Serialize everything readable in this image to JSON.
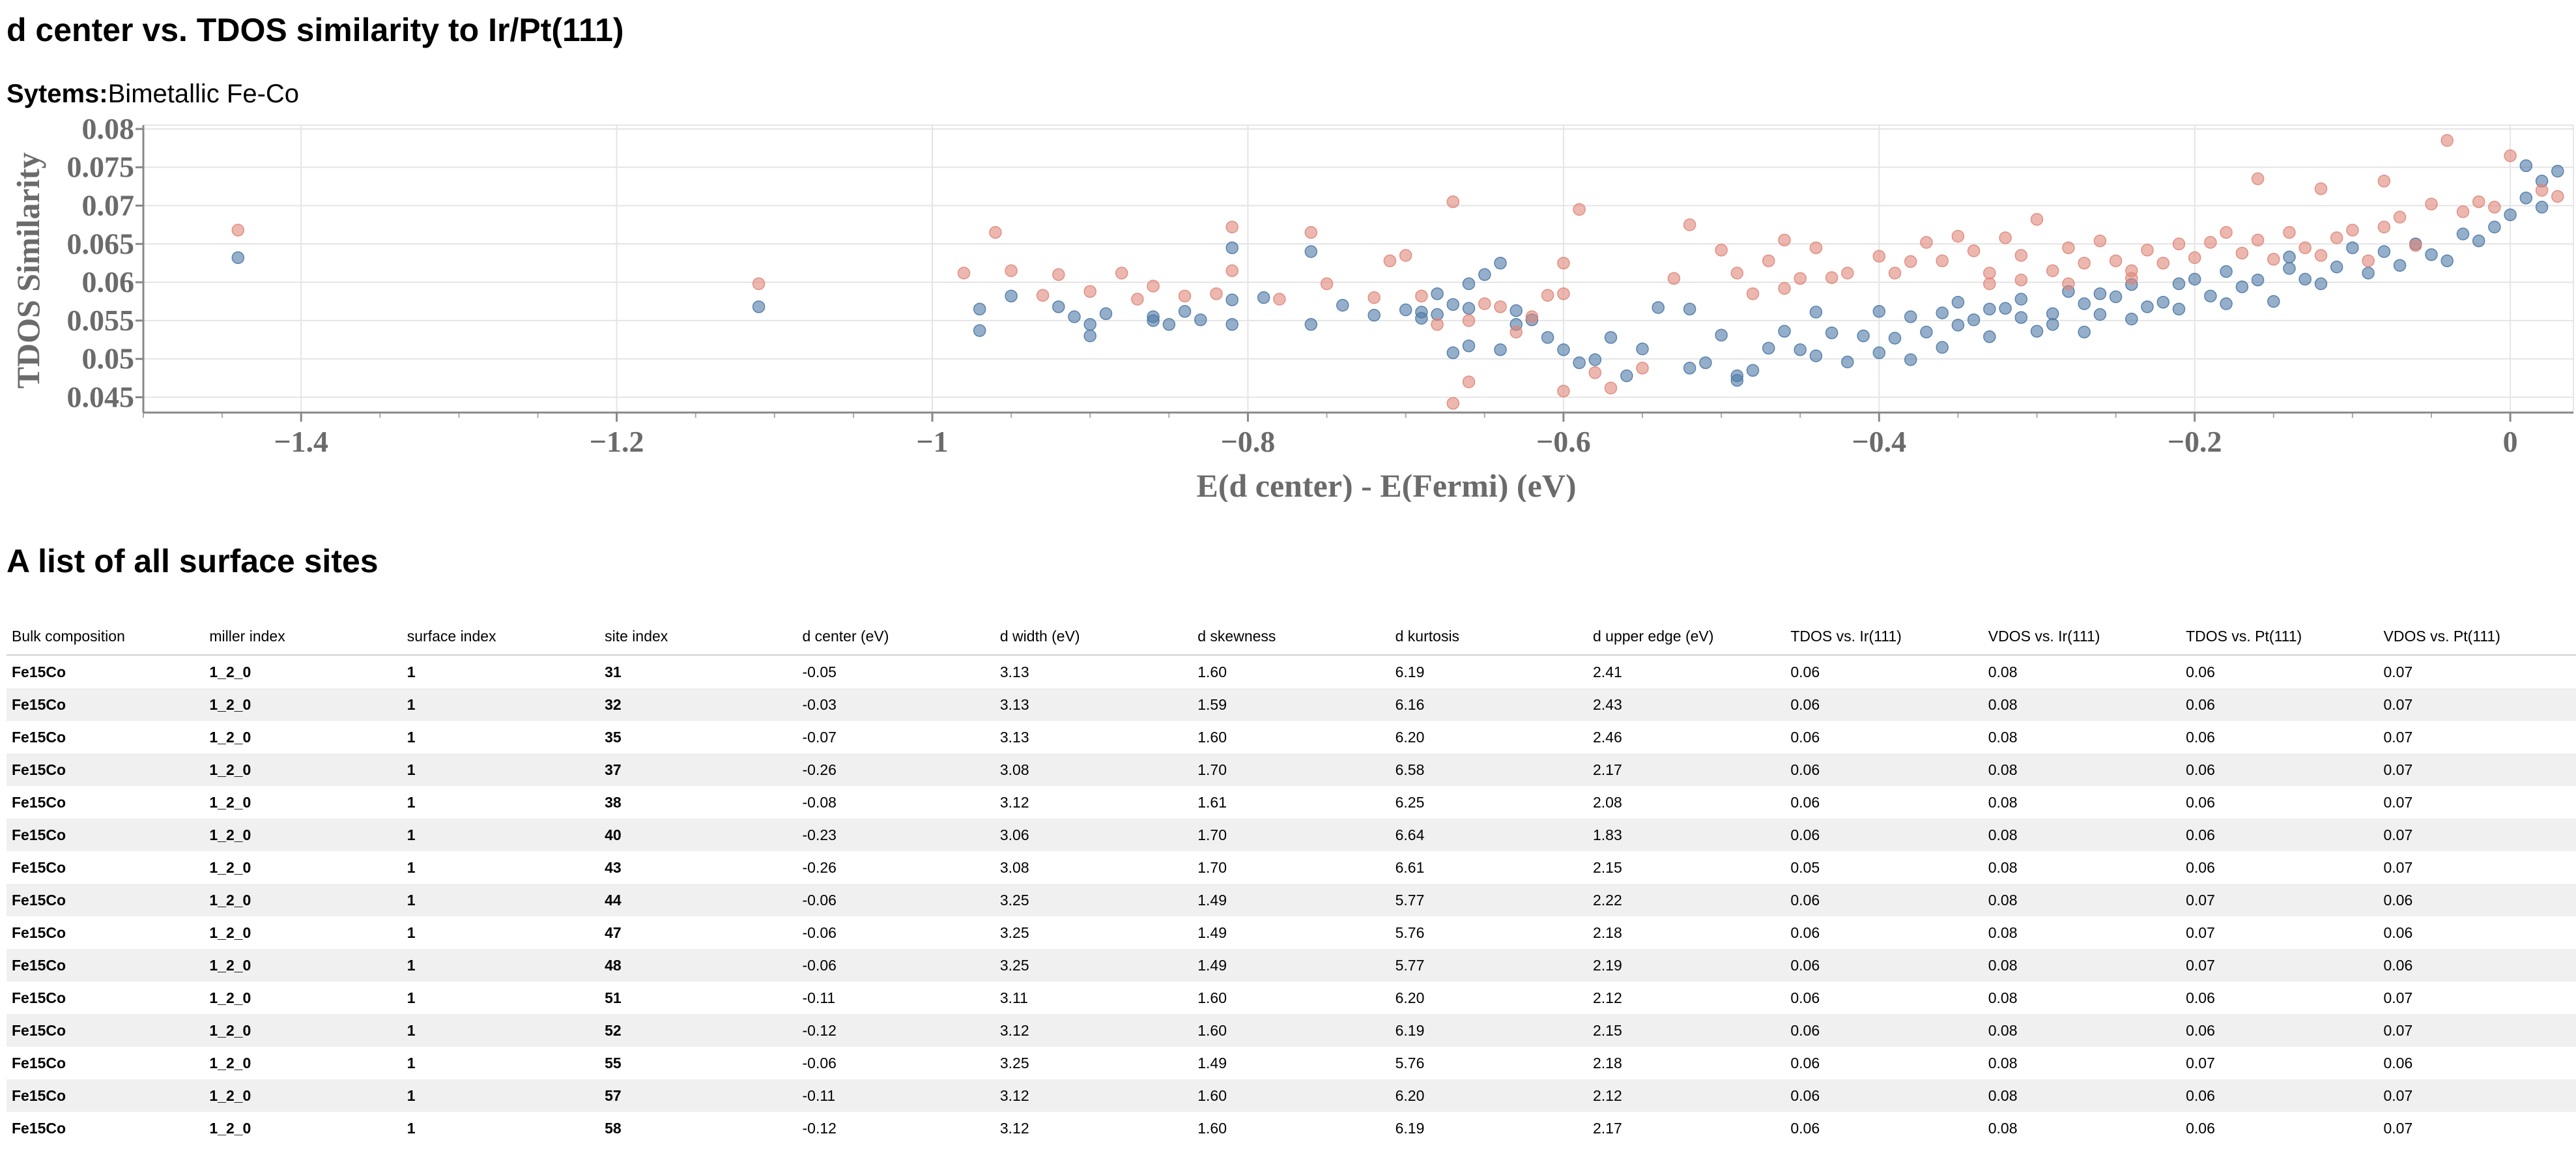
{
  "page": {
    "title": "d center vs. TDOS similarity to Ir/Pt(111)",
    "systems_label": "Sytems:",
    "systems_value": "Bimetallic Fe-Co",
    "table_title": "A list of all surface sites"
  },
  "chart_data": {
    "type": "scatter",
    "title": "",
    "xlabel": "E(d center) - E(Fermi) (eV)",
    "ylabel": "TDOS Similarity",
    "xlim": [
      -1.5,
      0.04
    ],
    "ylim": [
      0.043,
      0.0805
    ],
    "x_ticks": [
      -1.4,
      -1.2,
      -1,
      -0.8,
      -0.6,
      -0.4,
      -0.2,
      0
    ],
    "x_tick_labels": [
      "−1.4",
      "−1.2",
      "−1",
      "−0.8",
      "−0.6",
      "−0.4",
      "−0.2",
      "0"
    ],
    "y_ticks": [
      0.045,
      0.05,
      0.055,
      0.06,
      0.065,
      0.07,
      0.075,
      0.08
    ],
    "y_tick_labels": [
      "0.045",
      "0.05",
      "0.055",
      "0.06",
      "0.065",
      "0.07",
      "0.075",
      "0.08"
    ],
    "grid": true,
    "legend": "none",
    "colors": {
      "blue": "#4e79a7",
      "orange": "#e0877a"
    },
    "series": [
      {
        "color": "#4e79a7",
        "points": [
          [
            -1.44,
            0.0632
          ],
          [
            -1.11,
            0.0568
          ],
          [
            -0.97,
            0.0565
          ],
          [
            -0.97,
            0.0537
          ],
          [
            -0.95,
            0.0582
          ],
          [
            -0.92,
            0.0568
          ],
          [
            -0.91,
            0.0555
          ],
          [
            -0.9,
            0.0545
          ],
          [
            -0.9,
            0.053
          ],
          [
            -0.89,
            0.0559
          ],
          [
            -0.86,
            0.0555
          ],
          [
            -0.86,
            0.055
          ],
          [
            -0.85,
            0.0545
          ],
          [
            -0.84,
            0.0562
          ],
          [
            -0.83,
            0.0551
          ],
          [
            -0.81,
            0.0577
          ],
          [
            -0.81,
            0.0545
          ],
          [
            -0.81,
            0.0645
          ],
          [
            -0.79,
            0.058
          ],
          [
            -0.76,
            0.0545
          ],
          [
            -0.76,
            0.064
          ],
          [
            -0.74,
            0.057
          ],
          [
            -0.72,
            0.0557
          ],
          [
            -0.7,
            0.0564
          ],
          [
            -0.69,
            0.0561
          ],
          [
            -0.68,
            0.0585
          ],
          [
            -0.68,
            0.0558
          ],
          [
            -0.67,
            0.0571
          ],
          [
            -0.66,
            0.0598
          ],
          [
            -0.66,
            0.0566
          ],
          [
            -0.65,
            0.061
          ],
          [
            -0.64,
            0.0625
          ],
          [
            -0.63,
            0.0563
          ],
          [
            -0.62,
            0.0551
          ],
          [
            -0.67,
            0.0508
          ],
          [
            -0.66,
            0.0517
          ],
          [
            -0.64,
            0.0512
          ],
          [
            -0.61,
            0.0528
          ],
          [
            -0.6,
            0.0512
          ],
          [
            -0.59,
            0.0495
          ],
          [
            -0.58,
            0.0499
          ],
          [
            -0.56,
            0.0478
          ],
          [
            -0.55,
            0.0513
          ],
          [
            -0.54,
            0.0567
          ],
          [
            -0.52,
            0.0488
          ],
          [
            -0.51,
            0.0495
          ],
          [
            -0.5,
            0.0531
          ],
          [
            -0.49,
            0.0472
          ],
          [
            -0.49,
            0.0478
          ],
          [
            -0.48,
            0.0485
          ],
          [
            -0.47,
            0.0514
          ],
          [
            -0.46,
            0.0536
          ],
          [
            -0.45,
            0.0512
          ],
          [
            -0.44,
            0.0504
          ],
          [
            -0.44,
            0.0561
          ],
          [
            -0.43,
            0.0534
          ],
          [
            -0.42,
            0.0496
          ],
          [
            -0.41,
            0.053
          ],
          [
            -0.4,
            0.0508
          ],
          [
            -0.39,
            0.0527
          ],
          [
            -0.38,
            0.0499
          ],
          [
            -0.38,
            0.0555
          ],
          [
            -0.37,
            0.0535
          ],
          [
            -0.36,
            0.0515
          ],
          [
            -0.35,
            0.0544
          ],
          [
            -0.35,
            0.0574
          ],
          [
            -0.34,
            0.0551
          ],
          [
            -0.33,
            0.0529
          ],
          [
            -0.32,
            0.0566
          ],
          [
            -0.31,
            0.0554
          ],
          [
            -0.31,
            0.0578
          ],
          [
            -0.3,
            0.0536
          ],
          [
            -0.29,
            0.0559
          ],
          [
            -0.28,
            0.0588
          ],
          [
            -0.27,
            0.0572
          ],
          [
            -0.26,
            0.0558
          ],
          [
            -0.25,
            0.0581
          ],
          [
            -0.24,
            0.0552
          ],
          [
            -0.24,
            0.0597
          ],
          [
            -0.22,
            0.0574
          ],
          [
            -0.21,
            0.0565
          ],
          [
            -0.21,
            0.0598
          ],
          [
            -0.2,
            0.0604
          ],
          [
            -0.19,
            0.0582
          ],
          [
            -0.18,
            0.0614
          ],
          [
            -0.17,
            0.0594
          ],
          [
            -0.16,
            0.0603
          ],
          [
            -0.15,
            0.0575
          ],
          [
            -0.14,
            0.0618
          ],
          [
            -0.14,
            0.0633
          ],
          [
            -0.13,
            0.0604
          ],
          [
            -0.12,
            0.0598
          ],
          [
            -0.11,
            0.062
          ],
          [
            -0.1,
            0.0645
          ],
          [
            -0.09,
            0.0612
          ],
          [
            -0.08,
            0.064
          ],
          [
            -0.07,
            0.0622
          ],
          [
            -0.06,
            0.065
          ],
          [
            -0.05,
            0.0636
          ],
          [
            -0.04,
            0.0628
          ],
          [
            -0.03,
            0.0663
          ],
          [
            -0.02,
            0.0654
          ],
          [
            -0.01,
            0.0672
          ],
          [
            0.0,
            0.0688
          ],
          [
            0.01,
            0.071
          ],
          [
            0.02,
            0.0732
          ],
          [
            0.02,
            0.0698
          ],
          [
            0.03,
            0.0745
          ],
          [
            0.01,
            0.0752
          ],
          [
            -0.29,
            0.0545
          ],
          [
            -0.27,
            0.0535
          ],
          [
            -0.26,
            0.0585
          ],
          [
            -0.23,
            0.0568
          ],
          [
            -0.18,
            0.0572
          ],
          [
            -0.33,
            0.0565
          ],
          [
            -0.36,
            0.056
          ],
          [
            -0.4,
            0.0562
          ],
          [
            -0.52,
            0.0565
          ],
          [
            -0.57,
            0.0528
          ],
          [
            -0.63,
            0.0545
          ],
          [
            -0.69,
            0.0553
          ]
        ]
      },
      {
        "color": "#e0877a",
        "points": [
          [
            -1.44,
            0.0668
          ],
          [
            -1.11,
            0.0598
          ],
          [
            -0.98,
            0.0612
          ],
          [
            -0.96,
            0.0665
          ],
          [
            -0.95,
            0.0615
          ],
          [
            -0.93,
            0.0583
          ],
          [
            -0.92,
            0.061
          ],
          [
            -0.9,
            0.0588
          ],
          [
            -0.88,
            0.0612
          ],
          [
            -0.87,
            0.0578
          ],
          [
            -0.86,
            0.0595
          ],
          [
            -0.84,
            0.0582
          ],
          [
            -0.82,
            0.0585
          ],
          [
            -0.81,
            0.0672
          ],
          [
            -0.81,
            0.0615
          ],
          [
            -0.78,
            0.0578
          ],
          [
            -0.76,
            0.0665
          ],
          [
            -0.75,
            0.0598
          ],
          [
            -0.72,
            0.058
          ],
          [
            -0.71,
            0.0628
          ],
          [
            -0.7,
            0.0635
          ],
          [
            -0.69,
            0.0582
          ],
          [
            -0.68,
            0.0545
          ],
          [
            -0.67,
            0.0705
          ],
          [
            -0.66,
            0.055
          ],
          [
            -0.65,
            0.0572
          ],
          [
            -0.64,
            0.0568
          ],
          [
            -0.63,
            0.0535
          ],
          [
            -0.62,
            0.0555
          ],
          [
            -0.61,
            0.0583
          ],
          [
            -0.6,
            0.0585
          ],
          [
            -0.6,
            0.0625
          ],
          [
            -0.59,
            0.0695
          ],
          [
            -0.67,
            0.0442
          ],
          [
            -0.66,
            0.047
          ],
          [
            -0.6,
            0.0458
          ],
          [
            -0.58,
            0.0482
          ],
          [
            -0.57,
            0.0462
          ],
          [
            -0.55,
            0.0488
          ],
          [
            -0.53,
            0.0605
          ],
          [
            -0.52,
            0.0675
          ],
          [
            -0.5,
            0.0642
          ],
          [
            -0.49,
            0.0612
          ],
          [
            -0.48,
            0.0585
          ],
          [
            -0.47,
            0.0628
          ],
          [
            -0.46,
            0.0655
          ],
          [
            -0.45,
            0.0605
          ],
          [
            -0.44,
            0.0645
          ],
          [
            -0.42,
            0.0612
          ],
          [
            -0.4,
            0.0634
          ],
          [
            -0.39,
            0.0612
          ],
          [
            -0.38,
            0.0627
          ],
          [
            -0.37,
            0.0652
          ],
          [
            -0.36,
            0.0628
          ],
          [
            -0.35,
            0.066
          ],
          [
            -0.34,
            0.0641
          ],
          [
            -0.33,
            0.0612
          ],
          [
            -0.32,
            0.0658
          ],
          [
            -0.31,
            0.0635
          ],
          [
            -0.3,
            0.0682
          ],
          [
            -0.29,
            0.0615
          ],
          [
            -0.28,
            0.0645
          ],
          [
            -0.27,
            0.0625
          ],
          [
            -0.26,
            0.0654
          ],
          [
            -0.25,
            0.0628
          ],
          [
            -0.24,
            0.0615
          ],
          [
            -0.23,
            0.0642
          ],
          [
            -0.22,
            0.0625
          ],
          [
            -0.21,
            0.065
          ],
          [
            -0.2,
            0.0632
          ],
          [
            -0.19,
            0.0652
          ],
          [
            -0.18,
            0.0665
          ],
          [
            -0.17,
            0.0638
          ],
          [
            -0.16,
            0.0655
          ],
          [
            -0.15,
            0.063
          ],
          [
            -0.14,
            0.0665
          ],
          [
            -0.13,
            0.0645
          ],
          [
            -0.12,
            0.0635
          ],
          [
            -0.11,
            0.0658
          ],
          [
            -0.1,
            0.0668
          ],
          [
            -0.09,
            0.0628
          ],
          [
            -0.08,
            0.0672
          ],
          [
            -0.07,
            0.0685
          ],
          [
            -0.06,
            0.0648
          ],
          [
            -0.05,
            0.0702
          ],
          [
            -0.04,
            0.0785
          ],
          [
            -0.03,
            0.0692
          ],
          [
            -0.02,
            0.0705
          ],
          [
            -0.01,
            0.0698
          ],
          [
            0.0,
            0.0765
          ],
          [
            0.02,
            0.072
          ],
          [
            0.03,
            0.0712
          ],
          [
            -0.31,
            0.0603
          ],
          [
            -0.28,
            0.0598
          ],
          [
            -0.24,
            0.0605
          ],
          [
            -0.33,
            0.0598
          ],
          [
            -0.43,
            0.0606
          ],
          [
            -0.46,
            0.0592
          ],
          [
            -0.16,
            0.0735
          ],
          [
            -0.08,
            0.0732
          ],
          [
            -0.12,
            0.0722
          ]
        ]
      }
    ]
  },
  "table": {
    "headers": [
      "Bulk composition",
      "miller index",
      "surface index",
      "site index",
      "d center (eV)",
      "d width (eV)",
      "d skewness",
      "d kurtosis",
      "d upper edge (eV)",
      "TDOS vs. Ir(111)",
      "VDOS vs. Ir(111)",
      "TDOS vs. Pt(111)",
      "VDOS vs. Pt(111)"
    ],
    "rows": [
      [
        "Fe15Co",
        "1_2_0",
        "1",
        "31",
        "-0.05",
        "3.13",
        "1.60",
        "6.19",
        "2.41",
        "0.06",
        "0.08",
        "0.06",
        "0.07"
      ],
      [
        "Fe15Co",
        "1_2_0",
        "1",
        "32",
        "-0.03",
        "3.13",
        "1.59",
        "6.16",
        "2.43",
        "0.06",
        "0.08",
        "0.06",
        "0.07"
      ],
      [
        "Fe15Co",
        "1_2_0",
        "1",
        "35",
        "-0.07",
        "3.13",
        "1.60",
        "6.20",
        "2.46",
        "0.06",
        "0.08",
        "0.06",
        "0.07"
      ],
      [
        "Fe15Co",
        "1_2_0",
        "1",
        "37",
        "-0.26",
        "3.08",
        "1.70",
        "6.58",
        "2.17",
        "0.06",
        "0.08",
        "0.06",
        "0.07"
      ],
      [
        "Fe15Co",
        "1_2_0",
        "1",
        "38",
        "-0.08",
        "3.12",
        "1.61",
        "6.25",
        "2.08",
        "0.06",
        "0.08",
        "0.06",
        "0.07"
      ],
      [
        "Fe15Co",
        "1_2_0",
        "1",
        "40",
        "-0.23",
        "3.06",
        "1.70",
        "6.64",
        "1.83",
        "0.06",
        "0.08",
        "0.06",
        "0.07"
      ],
      [
        "Fe15Co",
        "1_2_0",
        "1",
        "43",
        "-0.26",
        "3.08",
        "1.70",
        "6.61",
        "2.15",
        "0.05",
        "0.08",
        "0.06",
        "0.07"
      ],
      [
        "Fe15Co",
        "1_2_0",
        "1",
        "44",
        "-0.06",
        "3.25",
        "1.49",
        "5.77",
        "2.22",
        "0.06",
        "0.08",
        "0.07",
        "0.06"
      ],
      [
        "Fe15Co",
        "1_2_0",
        "1",
        "47",
        "-0.06",
        "3.25",
        "1.49",
        "5.76",
        "2.18",
        "0.06",
        "0.08",
        "0.07",
        "0.06"
      ],
      [
        "Fe15Co",
        "1_2_0",
        "1",
        "48",
        "-0.06",
        "3.25",
        "1.49",
        "5.77",
        "2.19",
        "0.06",
        "0.08",
        "0.07",
        "0.06"
      ],
      [
        "Fe15Co",
        "1_2_0",
        "1",
        "51",
        "-0.11",
        "3.11",
        "1.60",
        "6.20",
        "2.12",
        "0.06",
        "0.08",
        "0.06",
        "0.07"
      ],
      [
        "Fe15Co",
        "1_2_0",
        "1",
        "52",
        "-0.12",
        "3.12",
        "1.60",
        "6.19",
        "2.15",
        "0.06",
        "0.08",
        "0.06",
        "0.07"
      ],
      [
        "Fe15Co",
        "1_2_0",
        "1",
        "55",
        "-0.06",
        "3.25",
        "1.49",
        "5.76",
        "2.18",
        "0.06",
        "0.08",
        "0.07",
        "0.06"
      ],
      [
        "Fe15Co",
        "1_2_0",
        "1",
        "57",
        "-0.11",
        "3.12",
        "1.60",
        "6.20",
        "2.12",
        "0.06",
        "0.08",
        "0.06",
        "0.07"
      ],
      [
        "Fe15Co",
        "1_2_0",
        "1",
        "58",
        "-0.12",
        "3.12",
        "1.60",
        "6.19",
        "2.17",
        "0.06",
        "0.08",
        "0.06",
        "0.07"
      ]
    ],
    "bold_columns": [
      0,
      1,
      2,
      3
    ]
  }
}
